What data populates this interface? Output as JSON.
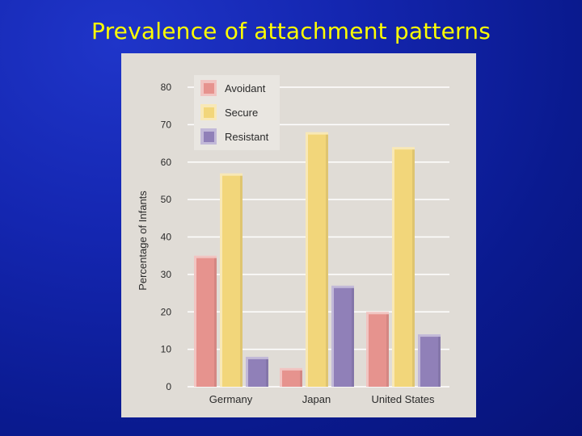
{
  "slide": {
    "title": "Prevalence of attachment patterns"
  },
  "colors": {
    "background": "#1426b0",
    "title": "#ffff00",
    "panel": "#e0dcd6"
  },
  "chart_data": {
    "type": "bar",
    "title": "",
    "xlabel": "",
    "ylabel": "Percentage of Infants",
    "ylim": [
      0,
      80
    ],
    "yticks": [
      0,
      10,
      20,
      30,
      40,
      50,
      60,
      70,
      80
    ],
    "grid": true,
    "legend_position": "top-left",
    "categories": [
      "Germany",
      "Japan",
      "United States"
    ],
    "series": [
      {
        "name": "Avoidant",
        "color": "#e6938e",
        "values": [
          35,
          5,
          20
        ]
      },
      {
        "name": "Secure",
        "color": "#f2d67a",
        "values": [
          57,
          68,
          64
        ]
      },
      {
        "name": "Resistant",
        "color": "#9080b8",
        "values": [
          8,
          27,
          14
        ]
      }
    ]
  }
}
